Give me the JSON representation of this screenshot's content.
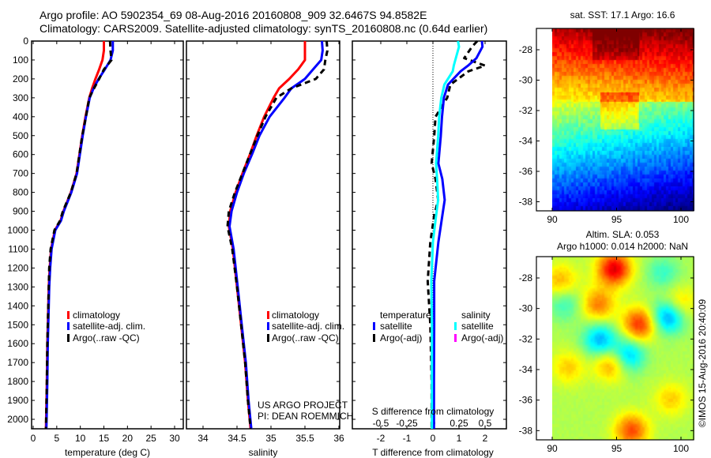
{
  "header": {
    "line1": "Argo profile: AO 5902354_69 08-Aug-2016 20160808_909 32.6467S 94.8582E",
    "line2": "Climatology: CARS2009. Satellite-adjusted climatology: synTS_20160808.nc (0.64d earlier)"
  },
  "project": {
    "line1": "US ARGO PROJECT",
    "line2": "PI: DEAN ROEMMICH"
  },
  "credit": "©IMOS 15-Aug-2016 20:40:09",
  "colors": {
    "climatology": "#ff0000",
    "satellite": "#0000ff",
    "argo": "#000000",
    "sal_satellite": "#00ffff",
    "sal_argo": "#ff00ff"
  },
  "chart_data": [
    {
      "type": "line",
      "name": "temperature-profile",
      "xlabel": "temperature (deg C)",
      "ylabel": "",
      "xlim": [
        -0.3,
        31.8
      ],
      "ylim": [
        2050,
        0
      ],
      "xticks": [
        "0",
        "5",
        "10",
        "15",
        "20",
        "25",
        "30"
      ],
      "yticks": [
        "0",
        "100",
        "200",
        "300",
        "400",
        "500",
        "600",
        "700",
        "800",
        "900",
        "1000",
        "1100",
        "1200",
        "1300",
        "1400",
        "1500",
        "1600",
        "1700",
        "1800",
        "1900",
        "2000"
      ],
      "legend": [
        "climatology",
        "satellite-adj. clim.",
        "Argo(..raw -QC)"
      ],
      "depth": [
        0,
        50,
        100,
        150,
        200,
        250,
        300,
        400,
        500,
        600,
        700,
        800,
        900,
        950,
        1000,
        1100,
        1200,
        1300,
        1400,
        1600,
        1800,
        2000,
        2050
      ],
      "series": [
        {
          "name": "climatology",
          "values": [
            15.0,
            15.0,
            14.7,
            14.0,
            13.2,
            12.5,
            11.9,
            11.1,
            10.4,
            9.8,
            9.2,
            8.0,
            6.4,
            5.8,
            4.6,
            3.8,
            3.5,
            3.3,
            3.2,
            3.0,
            2.9,
            2.75,
            2.7
          ]
        },
        {
          "name": "satellite-adj. clim.",
          "values": [
            16.9,
            16.9,
            16.4,
            15.2,
            13.9,
            12.8,
            12.0,
            11.2,
            10.5,
            9.9,
            9.3,
            8.1,
            6.5,
            5.9,
            4.7,
            3.9,
            3.6,
            3.4,
            3.3,
            3.1,
            3.0,
            2.85,
            2.8
          ]
        },
        {
          "name": "Argo(..raw -QC)",
          "values": [
            16.3,
            16.4,
            16.6,
            15.0,
            14.0,
            12.9,
            11.9,
            11.2,
            10.4,
            9.8,
            9.2,
            8.0,
            6.3,
            5.7,
            4.5,
            3.7,
            3.4,
            3.3,
            3.2,
            3.0,
            2.9,
            2.75,
            2.7
          ]
        }
      ]
    },
    {
      "type": "line",
      "name": "salinity-profile",
      "xlabel": "salinity",
      "xlim": [
        33.75,
        36.0
      ],
      "ylim": [
        2050,
        0
      ],
      "xticks": [
        "34",
        "34.5",
        "35",
        "35.5",
        "36"
      ],
      "legend": [
        "climatology",
        "satellite-adj. clim.",
        "Argo(..raw -QC)"
      ],
      "depth": [
        0,
        50,
        100,
        150,
        200,
        250,
        300,
        400,
        500,
        600,
        700,
        800,
        900,
        980,
        1100,
        1300,
        1500,
        1700,
        1900,
        2050
      ],
      "series": [
        {
          "name": "climatology",
          "values": [
            35.5,
            35.5,
            35.5,
            35.4,
            35.27,
            35.12,
            35.04,
            34.9,
            34.79,
            34.69,
            34.58,
            34.48,
            34.4,
            34.38,
            34.44,
            34.5,
            34.56,
            34.62,
            34.66,
            34.7
          ]
        },
        {
          "name": "satellite-adj. clim.",
          "values": [
            35.75,
            35.76,
            35.74,
            35.62,
            35.5,
            35.3,
            35.2,
            34.98,
            34.83,
            34.72,
            34.6,
            34.5,
            34.42,
            34.39,
            34.45,
            34.51,
            34.57,
            34.63,
            34.67,
            34.71
          ]
        },
        {
          "name": "Argo(..raw -QC)",
          "values": [
            35.82,
            35.83,
            35.8,
            35.78,
            35.66,
            35.3,
            35.08,
            34.92,
            34.8,
            34.69,
            34.58,
            34.47,
            34.38,
            34.36,
            34.43,
            34.5,
            34.56,
            34.62,
            34.66,
            34.7
          ]
        }
      ]
    },
    {
      "type": "line",
      "name": "difference-profile",
      "xlabel": "T difference from climatology",
      "x2label": "S difference from climatology",
      "xlim": [
        -3.1,
        2.8
      ],
      "xticks": [
        "-2",
        "-1",
        "0",
        "1",
        "2"
      ],
      "x2ticks": [
        "-0.5",
        "-0.25",
        "0",
        "0.25",
        "0.5"
      ],
      "legend_titles": [
        "temperature",
        "salinity"
      ],
      "legend": [
        "satellite",
        "Argo(-adj)",
        "satellite",
        "Argo(-adj)"
      ],
      "depth": [
        0,
        30,
        90,
        130,
        160,
        230,
        300,
        400,
        505,
        647,
        730,
        840,
        923,
        1063,
        1270,
        1500,
        1800,
        2050
      ],
      "series": [
        {
          "name": "temperature satellite",
          "axis": "T",
          "values": [
            1.88,
            1.9,
            1.67,
            1.35,
            1.06,
            0.58,
            0.42,
            0.35,
            0.3,
            0.21,
            0.36,
            0.45,
            0.36,
            0.21,
            0.05,
            0.05,
            0.04,
            0.04
          ]
        },
        {
          "name": "temperature Argo(-adj)",
          "axis": "T",
          "values": [
            1.7,
            1.5,
            1.2,
            2.0,
            1.36,
            0.67,
            0.55,
            0.1,
            0.05,
            -0.05,
            0.1,
            0.2,
            0.05,
            -0.1,
            -0.2,
            -0.1,
            -0.05,
            -0.05
          ]
        },
        {
          "name": "salinity satellite",
          "axis": "S",
          "values": [
            0.24,
            0.25,
            0.22,
            0.2,
            0.19,
            0.11,
            0.08,
            0.06,
            0.05,
            0.03,
            0.04,
            0.05,
            0.03,
            0.0,
            -0.015,
            -0.01,
            -0.01,
            -0.01
          ]
        }
      ]
    },
    {
      "type": "heatmap",
      "name": "sst-map",
      "title": "sat. SST: 17.1 Argo: 16.6",
      "xlim": [
        88.8,
        101.0
      ],
      "ylim": [
        -38.6,
        -26.6
      ],
      "xticks": [
        "90",
        "95",
        "100"
      ],
      "yticks": [
        "-28",
        "-30",
        "-32",
        "-34",
        "-36",
        "-38"
      ]
    },
    {
      "type": "heatmap",
      "name": "sla-map",
      "title": "Altim. SLA: 0.053",
      "subtitle": "Argo h1000: 0.014 h2000: NaN",
      "xlim": [
        88.8,
        101.0
      ],
      "ylim": [
        -38.6,
        -26.6
      ],
      "xticks": [
        "90",
        "95",
        "100"
      ],
      "yticks": [
        "-28",
        "-30",
        "-32",
        "-34",
        "-36",
        "-38"
      ]
    }
  ]
}
